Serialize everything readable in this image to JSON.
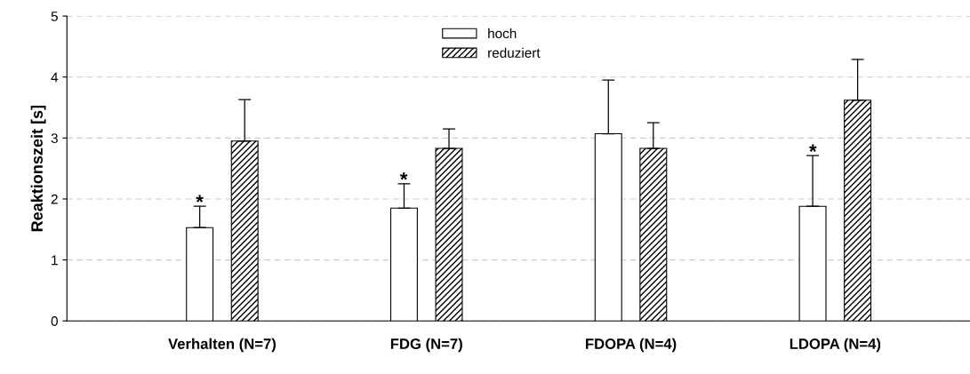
{
  "chart_data": {
    "type": "bar",
    "ylabel": "Reaktionszeit [s]",
    "categories": [
      "Verhalten (N=7)",
      "FDG (N=7)",
      "FDOPA (N=4)",
      "LDOPA (N=4)"
    ],
    "series": [
      {
        "name": "hoch",
        "color": "#ffffff",
        "values": [
          1.53,
          1.85,
          3.07,
          1.88
        ],
        "errors": [
          [
            1.53,
            1.88
          ],
          [
            1.85,
            2.25
          ],
          [
            3.07,
            3.95
          ],
          [
            1.88,
            2.71
          ]
        ]
      },
      {
        "name": "reduziert",
        "color": "#000000",
        "values": [
          2.95,
          2.83,
          2.83,
          3.62
        ],
        "errors": [
          [
            2.95,
            3.63
          ],
          [
            2.83,
            3.15
          ],
          [
            2.83,
            3.25
          ],
          [
            3.62,
            4.29
          ]
        ]
      }
    ],
    "ylim": [
      0,
      5
    ],
    "yticks": [
      0,
      1,
      2,
      3,
      4,
      5
    ],
    "grid": "y",
    "legend": "top",
    "annotations": [
      "*",
      "*",
      "*"
    ]
  }
}
